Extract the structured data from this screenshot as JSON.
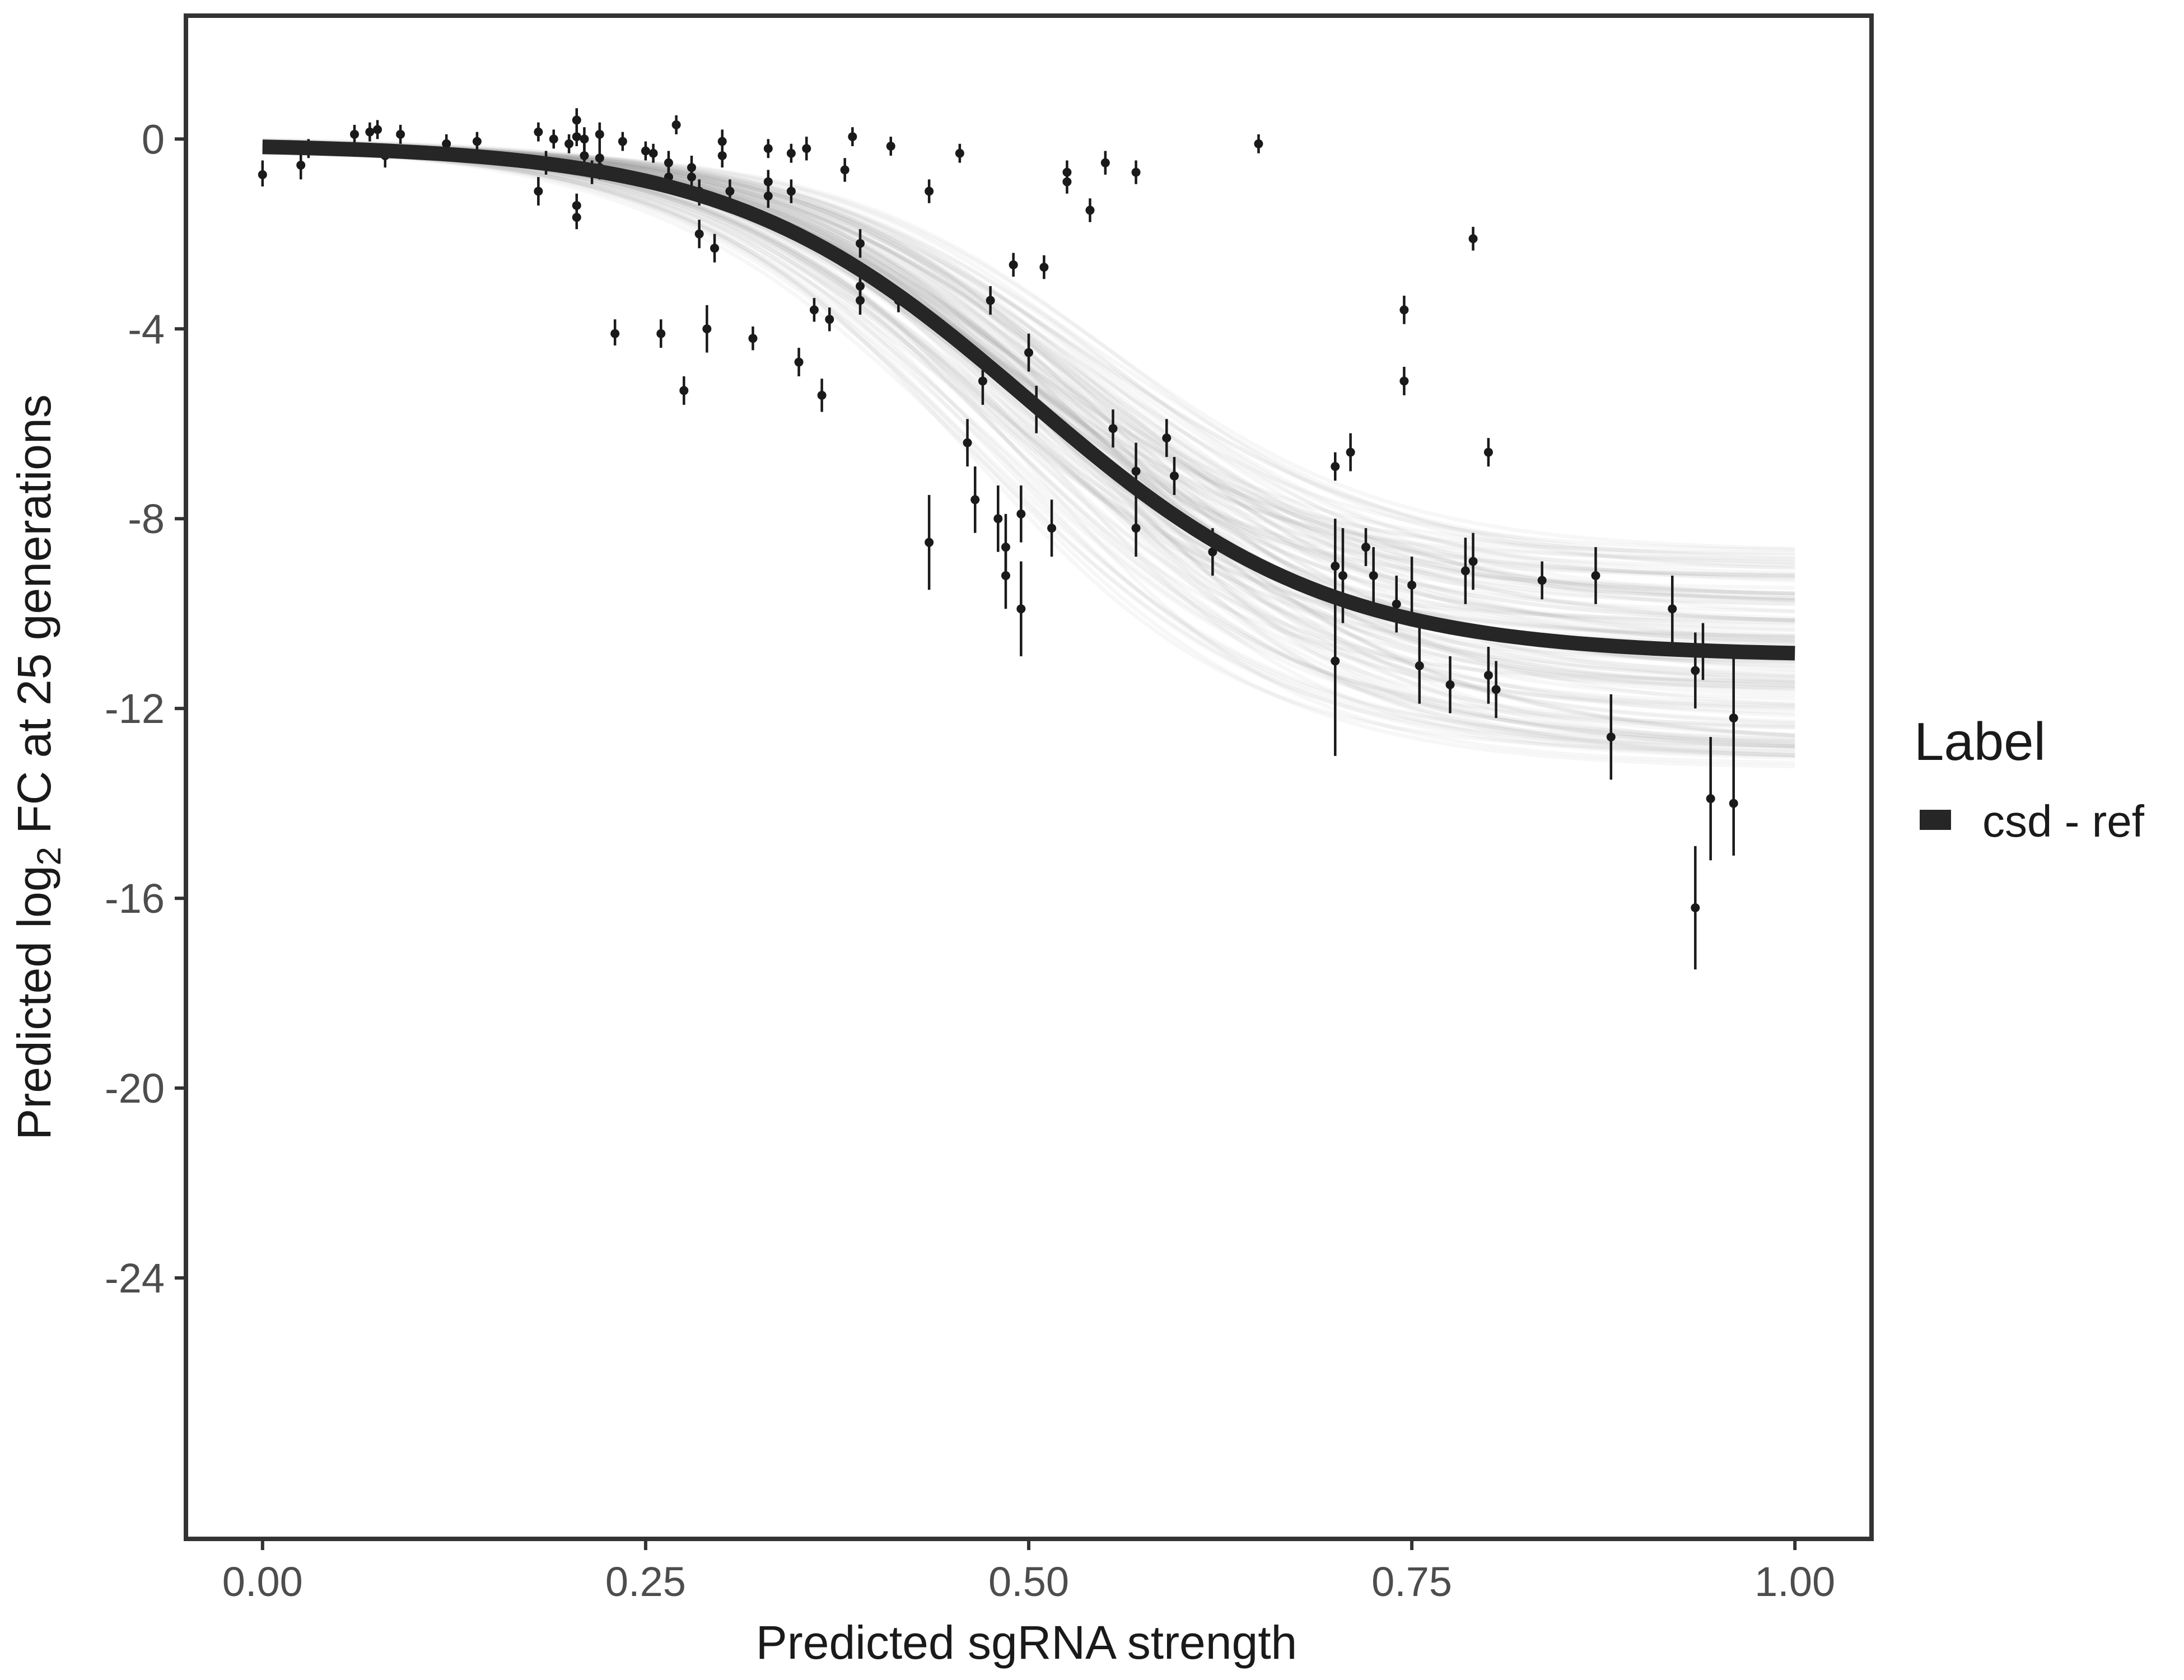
{
  "chart_data": {
    "type": "scatter",
    "xlabel": "Predicted sgRNA strength",
    "ylabel_parts": {
      "before": "Predicted  log",
      "subscript": "2",
      "after": " FC at 25 generations"
    },
    "xlim": [
      -0.05,
      1.05
    ],
    "ylim": [
      -29.5,
      2.6
    ],
    "x_ticks": [
      0,
      0.25,
      0.5,
      0.75,
      1
    ],
    "x_tick_labels": [
      "0.00",
      "0.25",
      "0.50",
      "0.75",
      "1.00"
    ],
    "y_ticks": [
      0,
      -4,
      -8,
      -12,
      -16,
      -20,
      -24
    ],
    "y_tick_labels": [
      "0",
      "-4",
      "-8",
      "-12",
      "-16",
      "-20",
      "-24"
    ],
    "grid": false,
    "legend": {
      "title": "Label",
      "position": "right",
      "entries": [
        "csd - ref"
      ]
    },
    "colors": {
      "fit_line": "#262626",
      "points": "#1a1a1a",
      "posterior_band": "#999999",
      "frame": "#333333"
    },
    "fit_model": {
      "form": "logistic",
      "upper": -0.1,
      "lower": -10.9,
      "midpoint": 0.5,
      "scale": 0.098,
      "posterior_draws": 120,
      "lower_range": [
        -8.7,
        -13.3
      ],
      "midpoint_range": [
        0.46,
        0.56
      ]
    },
    "points": [
      {
        "x": 0.0,
        "y": -0.75,
        "lo": -1.0,
        "hi": -0.45
      },
      {
        "x": 0.025,
        "y": -0.55,
        "lo": -0.85,
        "hi": -0.2
      },
      {
        "x": 0.03,
        "y": -0.2,
        "lo": -0.4,
        "hi": 0.0
      },
      {
        "x": 0.06,
        "y": 0.1,
        "lo": -0.1,
        "hi": 0.3
      },
      {
        "x": 0.07,
        "y": 0.15,
        "lo": -0.05,
        "hi": 0.35
      },
      {
        "x": 0.075,
        "y": 0.2,
        "lo": 0.0,
        "hi": 0.4
      },
      {
        "x": 0.08,
        "y": -0.35,
        "lo": -0.6,
        "hi": -0.15
      },
      {
        "x": 0.09,
        "y": 0.1,
        "lo": -0.1,
        "hi": 0.3
      },
      {
        "x": 0.12,
        "y": -0.1,
        "lo": -0.3,
        "hi": 0.1
      },
      {
        "x": 0.14,
        "y": -0.05,
        "lo": -0.25,
        "hi": 0.15
      },
      {
        "x": 0.18,
        "y": 0.15,
        "lo": -0.05,
        "hi": 0.35
      },
      {
        "x": 0.18,
        "y": -1.1,
        "lo": -1.4,
        "hi": -0.8
      },
      {
        "x": 0.185,
        "y": -0.5,
        "lo": -0.75,
        "hi": -0.25
      },
      {
        "x": 0.19,
        "y": 0.0,
        "lo": -0.2,
        "hi": 0.2
      },
      {
        "x": 0.2,
        "y": -0.1,
        "lo": -0.3,
        "hi": 0.1
      },
      {
        "x": 0.205,
        "y": 0.4,
        "lo": 0.15,
        "hi": 0.65
      },
      {
        "x": 0.205,
        "y": 0.05,
        "lo": -0.15,
        "hi": 0.25
      },
      {
        "x": 0.205,
        "y": -1.4,
        "lo": -1.65,
        "hi": -1.15
      },
      {
        "x": 0.205,
        "y": -1.65,
        "lo": -1.9,
        "hi": -1.4
      },
      {
        "x": 0.21,
        "y": -0.35,
        "lo": -0.6,
        "hi": -0.1
      },
      {
        "x": 0.21,
        "y": 0.0,
        "lo": -0.25,
        "hi": 0.25
      },
      {
        "x": 0.215,
        "y": -0.7,
        "lo": -0.95,
        "hi": -0.45
      },
      {
        "x": 0.22,
        "y": 0.1,
        "lo": -0.15,
        "hi": 0.35
      },
      {
        "x": 0.22,
        "y": -0.4,
        "lo": -0.65,
        "hi": -0.15
      },
      {
        "x": 0.22,
        "y": -0.6,
        "lo": -0.85,
        "hi": -0.35
      },
      {
        "x": 0.23,
        "y": -4.1,
        "lo": -4.35,
        "hi": -3.8
      },
      {
        "x": 0.235,
        "y": -0.05,
        "lo": -0.25,
        "hi": 0.15
      },
      {
        "x": 0.25,
        "y": -0.25,
        "lo": -0.45,
        "hi": -0.05
      },
      {
        "x": 0.255,
        "y": -0.3,
        "lo": -0.5,
        "hi": -0.1
      },
      {
        "x": 0.26,
        "y": -4.1,
        "lo": -4.4,
        "hi": -3.8
      },
      {
        "x": 0.265,
        "y": -0.5,
        "lo": -0.75,
        "hi": -0.25
      },
      {
        "x": 0.265,
        "y": -0.8,
        "lo": -1.05,
        "hi": -0.55
      },
      {
        "x": 0.27,
        "y": 0.3,
        "lo": 0.1,
        "hi": 0.5
      },
      {
        "x": 0.275,
        "y": -5.3,
        "lo": -5.6,
        "hi": -5.0
      },
      {
        "x": 0.28,
        "y": -0.6,
        "lo": -0.85,
        "hi": -0.35
      },
      {
        "x": 0.28,
        "y": -0.8,
        "lo": -1.05,
        "hi": -0.55
      },
      {
        "x": 0.285,
        "y": -1.1,
        "lo": -1.4,
        "hi": -0.85
      },
      {
        "x": 0.285,
        "y": -2.0,
        "lo": -2.3,
        "hi": -1.7
      },
      {
        "x": 0.29,
        "y": -4.0,
        "lo": -4.5,
        "hi": -3.5
      },
      {
        "x": 0.295,
        "y": -2.3,
        "lo": -2.6,
        "hi": -2.0
      },
      {
        "x": 0.3,
        "y": -0.05,
        "lo": -0.3,
        "hi": 0.2
      },
      {
        "x": 0.3,
        "y": -0.35,
        "lo": -0.6,
        "hi": -0.1
      },
      {
        "x": 0.305,
        "y": -1.1,
        "lo": -1.35,
        "hi": -0.85
      },
      {
        "x": 0.32,
        "y": -4.2,
        "lo": -4.45,
        "hi": -3.95
      },
      {
        "x": 0.33,
        "y": -0.2,
        "lo": -0.4,
        "hi": 0.0
      },
      {
        "x": 0.33,
        "y": -0.9,
        "lo": -1.15,
        "hi": -0.65
      },
      {
        "x": 0.33,
        "y": -1.2,
        "lo": -1.45,
        "hi": -0.95
      },
      {
        "x": 0.345,
        "y": -0.3,
        "lo": -0.5,
        "hi": -0.1
      },
      {
        "x": 0.345,
        "y": -1.1,
        "lo": -1.35,
        "hi": -0.85
      },
      {
        "x": 0.35,
        "y": -4.7,
        "lo": -5.0,
        "hi": -4.4
      },
      {
        "x": 0.355,
        "y": -0.2,
        "lo": -0.45,
        "hi": 0.05
      },
      {
        "x": 0.36,
        "y": -3.6,
        "lo": -3.85,
        "hi": -3.35
      },
      {
        "x": 0.365,
        "y": -5.4,
        "lo": -5.75,
        "hi": -5.05
      },
      {
        "x": 0.37,
        "y": -3.8,
        "lo": -4.05,
        "hi": -3.55
      },
      {
        "x": 0.38,
        "y": -0.65,
        "lo": -0.9,
        "hi": -0.4
      },
      {
        "x": 0.385,
        "y": 0.05,
        "lo": -0.15,
        "hi": 0.25
      },
      {
        "x": 0.39,
        "y": -2.2,
        "lo": -2.5,
        "hi": -1.9
      },
      {
        "x": 0.39,
        "y": -3.1,
        "lo": -3.4,
        "hi": -2.8
      },
      {
        "x": 0.39,
        "y": -3.4,
        "lo": -3.7,
        "hi": -3.1
      },
      {
        "x": 0.41,
        "y": -0.15,
        "lo": -0.35,
        "hi": 0.05
      },
      {
        "x": 0.415,
        "y": -3.4,
        "lo": -3.65,
        "hi": -3.15
      },
      {
        "x": 0.435,
        "y": -8.5,
        "lo": -9.5,
        "hi": -7.5
      },
      {
        "x": 0.435,
        "y": -1.1,
        "lo": -1.35,
        "hi": -0.85
      },
      {
        "x": 0.455,
        "y": -0.3,
        "lo": -0.5,
        "hi": -0.1
      },
      {
        "x": 0.46,
        "y": -6.4,
        "lo": -6.9,
        "hi": -5.9
      },
      {
        "x": 0.465,
        "y": -7.6,
        "lo": -8.3,
        "hi": -6.9
      },
      {
        "x": 0.47,
        "y": -5.1,
        "lo": -5.6,
        "hi": -4.6
      },
      {
        "x": 0.475,
        "y": -3.4,
        "lo": -3.7,
        "hi": -3.1
      },
      {
        "x": 0.48,
        "y": -8.0,
        "lo": -8.7,
        "hi": -7.3
      },
      {
        "x": 0.485,
        "y": -9.2,
        "lo": -9.9,
        "hi": -8.5
      },
      {
        "x": 0.485,
        "y": -8.6,
        "lo": -9.3,
        "hi": -7.9
      },
      {
        "x": 0.49,
        "y": -2.65,
        "lo": -2.9,
        "hi": -2.4
      },
      {
        "x": 0.495,
        "y": -7.9,
        "lo": -8.5,
        "hi": -7.3
      },
      {
        "x": 0.495,
        "y": -9.9,
        "lo": -10.9,
        "hi": -8.9
      },
      {
        "x": 0.5,
        "y": -4.5,
        "lo": -4.9,
        "hi": -4.1
      },
      {
        "x": 0.505,
        "y": -5.7,
        "lo": -6.2,
        "hi": -5.2
      },
      {
        "x": 0.51,
        "y": -2.7,
        "lo": -2.95,
        "hi": -2.45
      },
      {
        "x": 0.515,
        "y": -8.2,
        "lo": -8.8,
        "hi": -7.6
      },
      {
        "x": 0.525,
        "y": -0.7,
        "lo": -0.95,
        "hi": -0.45
      },
      {
        "x": 0.525,
        "y": -0.9,
        "lo": -1.15,
        "hi": -0.65
      },
      {
        "x": 0.54,
        "y": -1.5,
        "lo": -1.75,
        "hi": -1.25
      },
      {
        "x": 0.55,
        "y": -0.5,
        "lo": -0.75,
        "hi": -0.25
      },
      {
        "x": 0.555,
        "y": -6.1,
        "lo": -6.5,
        "hi": -5.7
      },
      {
        "x": 0.57,
        "y": -0.7,
        "lo": -0.95,
        "hi": -0.45
      },
      {
        "x": 0.57,
        "y": -7.0,
        "lo": -7.6,
        "hi": -6.4
      },
      {
        "x": 0.57,
        "y": -8.2,
        "lo": -8.8,
        "hi": -7.6
      },
      {
        "x": 0.59,
        "y": -6.3,
        "lo": -6.7,
        "hi": -5.9
      },
      {
        "x": 0.595,
        "y": -7.1,
        "lo": -7.5,
        "hi": -6.7
      },
      {
        "x": 0.62,
        "y": -8.7,
        "lo": -9.2,
        "hi": -8.2
      },
      {
        "x": 0.65,
        "y": -0.1,
        "lo": -0.3,
        "hi": 0.1
      },
      {
        "x": 0.7,
        "y": -6.9,
        "lo": -7.2,
        "hi": -6.6
      },
      {
        "x": 0.7,
        "y": -9.0,
        "lo": -10.0,
        "hi": -8.0
      },
      {
        "x": 0.7,
        "y": -11.0,
        "lo": -13.0,
        "hi": -9.0
      },
      {
        "x": 0.705,
        "y": -9.2,
        "lo": -10.2,
        "hi": -8.2
      },
      {
        "x": 0.71,
        "y": -6.6,
        "lo": -7.0,
        "hi": -6.2
      },
      {
        "x": 0.72,
        "y": -8.6,
        "lo": -9.0,
        "hi": -8.2
      },
      {
        "x": 0.725,
        "y": -9.2,
        "lo": -9.8,
        "hi": -8.6
      },
      {
        "x": 0.74,
        "y": -9.8,
        "lo": -10.4,
        "hi": -9.2
      },
      {
        "x": 0.745,
        "y": -3.6,
        "lo": -3.9,
        "hi": -3.3
      },
      {
        "x": 0.745,
        "y": -5.1,
        "lo": -5.4,
        "hi": -4.8
      },
      {
        "x": 0.75,
        "y": -9.4,
        "lo": -10.0,
        "hi": -8.8
      },
      {
        "x": 0.755,
        "y": -11.1,
        "lo": -11.9,
        "hi": -10.3
      },
      {
        "x": 0.775,
        "y": -11.5,
        "lo": -12.1,
        "hi": -10.9
      },
      {
        "x": 0.785,
        "y": -9.1,
        "lo": -9.8,
        "hi": -8.4
      },
      {
        "x": 0.79,
        "y": -8.9,
        "lo": -9.5,
        "hi": -8.3
      },
      {
        "x": 0.79,
        "y": -2.1,
        "lo": -2.35,
        "hi": -1.85
      },
      {
        "x": 0.8,
        "y": -6.6,
        "lo": -6.9,
        "hi": -6.3
      },
      {
        "x": 0.8,
        "y": -11.3,
        "lo": -11.9,
        "hi": -10.7
      },
      {
        "x": 0.805,
        "y": -11.6,
        "lo": -12.2,
        "hi": -11.0
      },
      {
        "x": 0.835,
        "y": -9.3,
        "lo": -9.7,
        "hi": -8.9
      },
      {
        "x": 0.87,
        "y": -9.2,
        "lo": -9.8,
        "hi": -8.6
      },
      {
        "x": 0.88,
        "y": -12.6,
        "lo": -13.5,
        "hi": -11.7
      },
      {
        "x": 0.92,
        "y": -9.9,
        "lo": -10.6,
        "hi": -9.2
      },
      {
        "x": 0.935,
        "y": -11.2,
        "lo": -12.0,
        "hi": -10.4
      },
      {
        "x": 0.935,
        "y": -16.2,
        "lo": -17.5,
        "hi": -14.9
      },
      {
        "x": 0.94,
        "y": -10.8,
        "lo": -11.4,
        "hi": -10.2
      },
      {
        "x": 0.945,
        "y": -13.9,
        "lo": -15.2,
        "hi": -12.6
      },
      {
        "x": 0.96,
        "y": -12.2,
        "lo": -13.7,
        "hi": -10.7
      },
      {
        "x": 0.96,
        "y": -14.0,
        "lo": -15.1,
        "hi": -12.9
      }
    ]
  }
}
